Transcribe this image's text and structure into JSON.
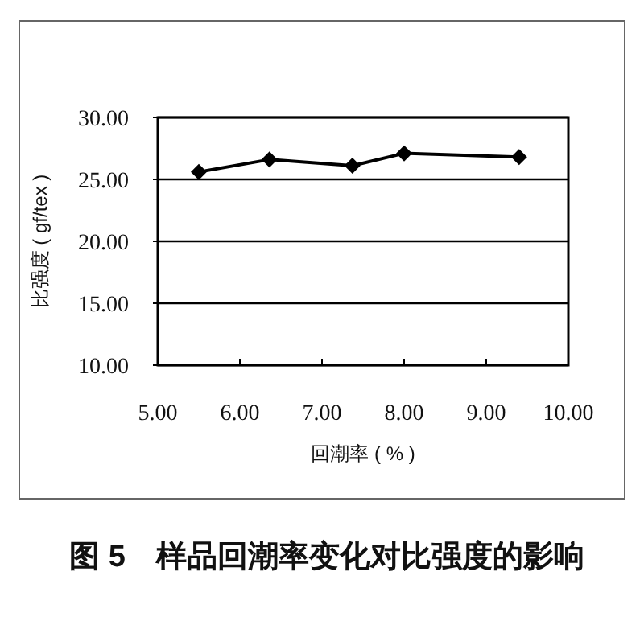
{
  "chart_data": {
    "type": "line",
    "title": "图 5　样品回潮率变化对比强度的影响",
    "xlabel": "回潮率 ( % )",
    "ylabel": "比强度 ( gf/tex )",
    "x": [
      5.5,
      6.36,
      7.37,
      8.0,
      9.4
    ],
    "series": [
      {
        "color": "#000000",
        "values": [
          25.6,
          26.6,
          26.1,
          27.1,
          26.8
        ]
      }
    ],
    "xlim": [
      5,
      10
    ],
    "ylim": [
      10,
      30
    ],
    "xticks": [
      {
        "value": 5,
        "label": "5.00"
      },
      {
        "value": 6,
        "label": "6.00"
      },
      {
        "value": 7,
        "label": "7.00"
      },
      {
        "value": 8,
        "label": "8.00"
      },
      {
        "value": 9,
        "label": "9.00"
      },
      {
        "value": 10,
        "label": "10.00"
      }
    ],
    "yticks": [
      {
        "value": 10,
        "label": "10.00"
      },
      {
        "value": 15,
        "label": "15.00"
      },
      {
        "value": 20,
        "label": "20.00"
      },
      {
        "value": 25,
        "label": "25.00"
      },
      {
        "value": 30,
        "label": "30.00"
      }
    ],
    "grid": "y",
    "marker": "diamond",
    "line_style": "solid"
  }
}
